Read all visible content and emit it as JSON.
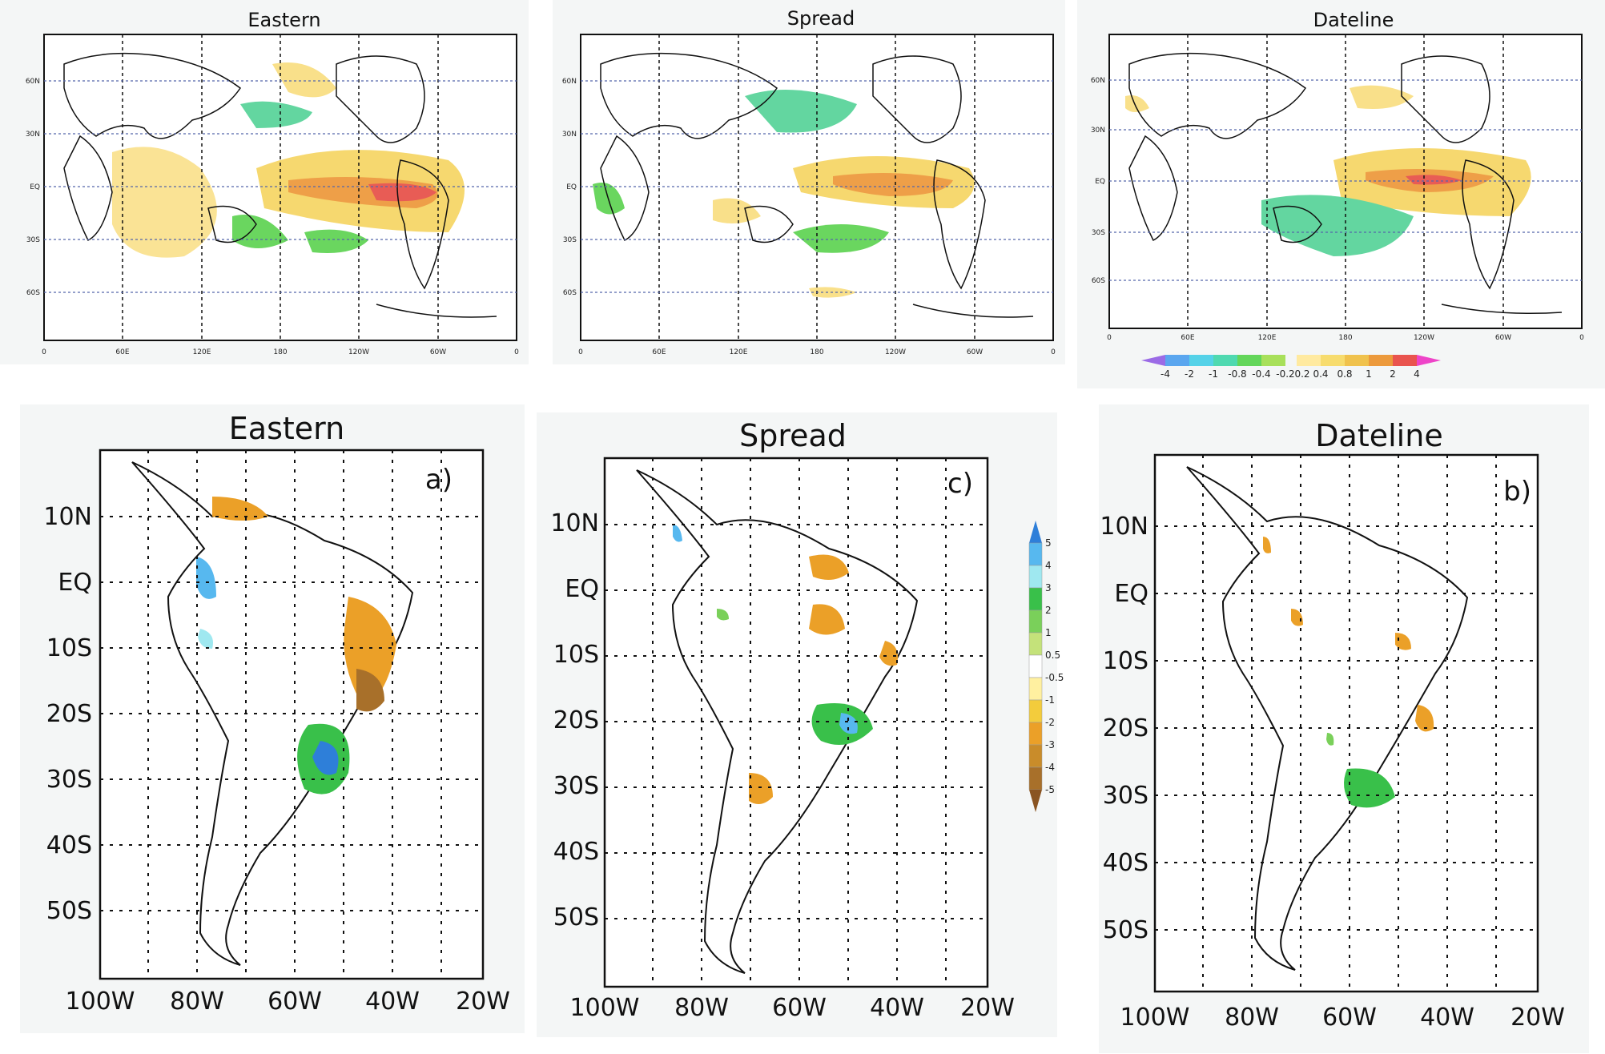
{
  "global_maps": [
    {
      "title": "Eastern",
      "lat_labels": [
        "60N",
        "30N",
        "EQ",
        "30S",
        "60S"
      ],
      "lon_labels": [
        "0",
        "60E",
        "120E",
        "180",
        "120W",
        "60W",
        "0"
      ]
    },
    {
      "title": "Spread",
      "lat_labels": [
        "60N",
        "30N",
        "EQ",
        "30S",
        "60S"
      ],
      "lon_labels": [
        "0",
        "60E",
        "120E",
        "180",
        "120W",
        "60W",
        "0"
      ]
    },
    {
      "title": "Dateline",
      "lat_labels": [
        "60N",
        "30N",
        "EQ",
        "30S",
        "60S"
      ],
      "lon_labels": [
        "0",
        "60E",
        "120E",
        "180",
        "120W",
        "60W",
        "0"
      ]
    }
  ],
  "global_colorbar": {
    "labels": [
      "-4",
      "-2",
      "-1",
      "-0.8",
      "-0.4",
      "-0.2",
      "0.2",
      "0.4",
      "0.8",
      "1",
      "2",
      "4"
    ],
    "colors": [
      "#9b6be6",
      "#5aa6ef",
      "#55d2e8",
      "#4fd9b0",
      "#63d65a",
      "#a8e05a",
      "#ffeaa0",
      "#f7dc6e",
      "#f0c24d",
      "#ec9a3c",
      "#e9544e",
      "#ee44c8"
    ]
  },
  "sa_maps": [
    {
      "title": "Eastern",
      "letter": "a)",
      "lat_labels": [
        "10N",
        "EQ",
        "10S",
        "20S",
        "30S",
        "40S",
        "50S"
      ],
      "lon_labels": [
        "100W",
        "80W",
        "60W",
        "40W",
        "20W"
      ]
    },
    {
      "title": "Spread",
      "letter": "c)",
      "lat_labels": [
        "10N",
        "EQ",
        "10S",
        "20S",
        "30S",
        "40S",
        "50S"
      ],
      "lon_labels": [
        "100W",
        "80W",
        "60W",
        "40W",
        "20W"
      ]
    },
    {
      "title": "Dateline",
      "letter": "b)",
      "lat_labels": [
        "10N",
        "EQ",
        "10S",
        "20S",
        "30S",
        "40S",
        "50S"
      ],
      "lon_labels": [
        "100W",
        "80W",
        "60W",
        "40W",
        "20W"
      ]
    }
  ],
  "sa_colorbar": {
    "labels": [
      "5",
      "4",
      "3",
      "2",
      "1",
      "0.5",
      "-0.5",
      "-1",
      "-2",
      "-3",
      "-4",
      "-5"
    ],
    "colors": [
      "#2e7fd9",
      "#57b8ef",
      "#9fe8f0",
      "#39c04a",
      "#7ad05a",
      "#c4e27a",
      "#ffffff",
      "#fff0a0",
      "#f3cc3c",
      "#eba028",
      "#c98c2a",
      "#a8702a",
      "#8a5422"
    ]
  }
}
